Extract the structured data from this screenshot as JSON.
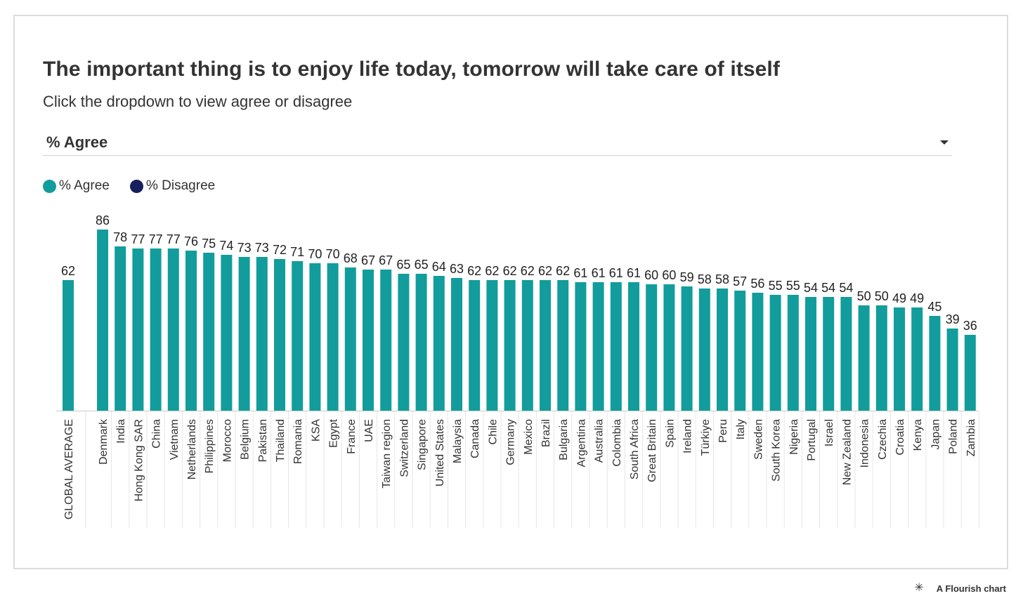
{
  "title": "The important thing is to enjoy life today, tomorrow will take care of itself",
  "subtitle": "Click the dropdown to view agree or disagree",
  "dropdown": {
    "selected": "% Agree"
  },
  "legend": [
    {
      "label": "% Agree",
      "color": "#139c9c"
    },
    {
      "label": "% Disagree",
      "color": "#16205c"
    }
  ],
  "footer": {
    "icon": "flourish-asterisk-icon",
    "text": "A Flourish chart"
  },
  "chart_data": {
    "type": "bar",
    "title": "The important thing is to enjoy life today, tomorrow will take care of itself",
    "subtitle": "Click the dropdown to view agree or disagree",
    "xlabel": "",
    "ylabel": "",
    "ylim": [
      0,
      86
    ],
    "grid": false,
    "legend_position": "top-left",
    "bar_color": "#139c9c",
    "show_value_labels": true,
    "categories": [
      "GLOBAL AVERAGE",
      "Denmark",
      "India",
      "Hong Kong SAR",
      "China",
      "Vietnam",
      "Netherlands",
      "Philippines",
      "Morocco",
      "Belgium",
      "Pakistan",
      "Thailand",
      "Romania",
      "KSA",
      "Egypt",
      "France",
      "UAE",
      "Taiwan region",
      "Switzerland",
      "Singapore",
      "United States",
      "Malaysia",
      "Canada",
      "Chile",
      "Germany",
      "Mexico",
      "Brazil",
      "Bulgaria",
      "Argentina",
      "Australia",
      "Colombia",
      "South Africa",
      "Great Britain",
      "Spain",
      "Ireland",
      "Türkiye",
      "Peru",
      "Italy",
      "Sweden",
      "South Korea",
      "Nigeria",
      "Portugal",
      "Israel",
      "New Zealand",
      "Indonesia",
      "Czechia",
      "Croatia",
      "Kenya",
      "Japan",
      "Poland",
      "Zambia"
    ],
    "series": [
      {
        "name": "% Agree",
        "values": [
          62,
          86,
          78,
          77,
          77,
          77,
          76,
          75,
          74,
          73,
          73,
          72,
          71,
          70,
          70,
          68,
          67,
          67,
          65,
          65,
          64,
          63,
          62,
          62,
          62,
          62,
          62,
          62,
          61,
          61,
          61,
          61,
          60,
          60,
          59,
          58,
          58,
          57,
          56,
          55,
          55,
          54,
          54,
          54,
          50,
          50,
          49,
          49,
          45,
          39,
          36
        ]
      }
    ]
  }
}
